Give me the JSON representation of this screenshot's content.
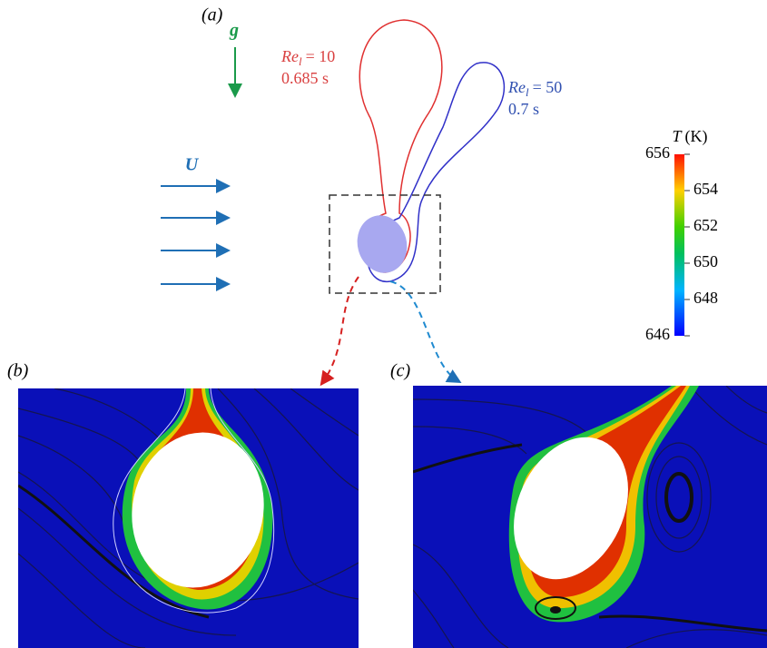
{
  "panel_a": {
    "label": "(a)",
    "gravity": "g",
    "velocity": "U",
    "case_1": {
      "symbol": "Re",
      "subscript": "l",
      "equals": "= 10",
      "time": "0.685 s"
    },
    "case_2": {
      "symbol": "Re",
      "subscript": "l",
      "equals": "= 50",
      "time": "0.7 s"
    }
  },
  "panel_b": {
    "label": "(b)"
  },
  "panel_c": {
    "label": "(c)"
  },
  "colorbar": {
    "symbol": "T",
    "unit": "(K)",
    "range": [
      646,
      656
    ],
    "ticks": [
      656,
      654,
      652,
      650,
      648,
      646
    ]
  }
}
